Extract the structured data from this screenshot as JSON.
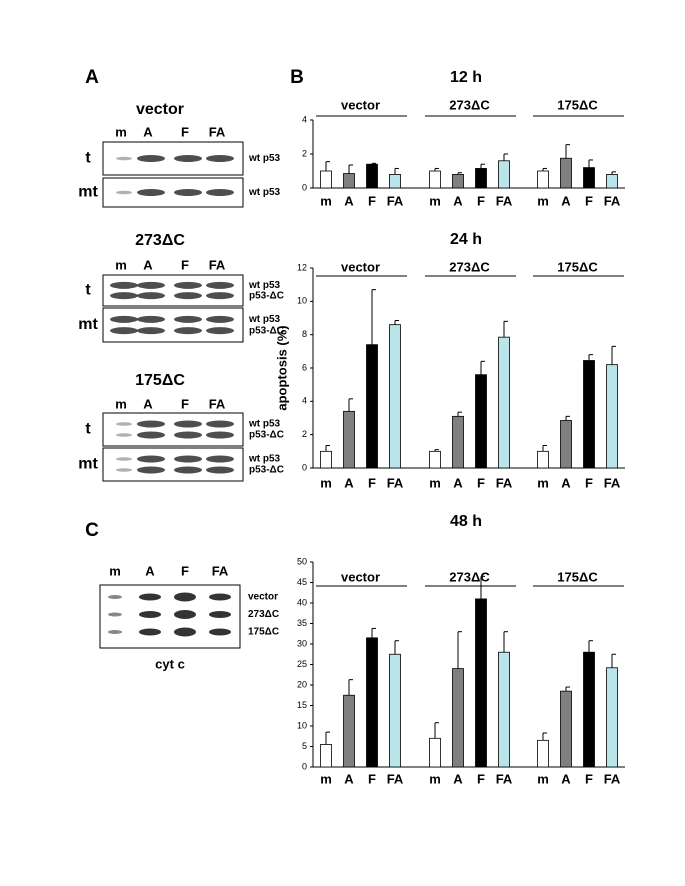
{
  "figure": {
    "panel_labels": [
      "A",
      "B",
      "C"
    ]
  },
  "blots": [
    {
      "title": "vector",
      "lanes": [
        "m",
        "A",
        "F",
        "FA"
      ],
      "rows": [
        {
          "label": "t",
          "bands": [
            "wt p53"
          ]
        },
        {
          "label": "mt",
          "bands": [
            "wt p53"
          ]
        }
      ]
    },
    {
      "title": "273ΔC",
      "lanes": [
        "m",
        "A",
        "F",
        "FA"
      ],
      "rows": [
        {
          "label": "t",
          "bands": [
            "wt p53",
            "p53-ΔC"
          ]
        },
        {
          "label": "mt",
          "bands": [
            "wt p53",
            "p53-ΔC"
          ]
        }
      ]
    },
    {
      "title": "175ΔC",
      "lanes": [
        "m",
        "A",
        "F",
        "FA"
      ],
      "rows": [
        {
          "label": "t",
          "bands": [
            "wt p53",
            "p53-ΔC"
          ]
        },
        {
          "label": "mt",
          "bands": [
            "wt p53",
            "p53-ΔC"
          ]
        }
      ]
    }
  ],
  "cyt_c": {
    "lanes": [
      "m",
      "A",
      "F",
      "FA"
    ],
    "bands": [
      "vector",
      "273ΔC",
      "175ΔC"
    ],
    "caption": "cyt c"
  },
  "chart_data": [
    {
      "type": "bar",
      "title": "12 h",
      "categories": [
        "m",
        "A",
        "F",
        "FA"
      ],
      "colors": [
        "#ffffff",
        "#808080",
        "#000000",
        "#b8e4ea"
      ],
      "groups": [
        {
          "name": "vector",
          "values": [
            1.0,
            0.85,
            1.4,
            0.8
          ],
          "errors": [
            0.55,
            0.5,
            0.05,
            0.35
          ]
        },
        {
          "name": "273ΔC",
          "values": [
            1.0,
            0.8,
            1.15,
            1.6
          ],
          "errors": [
            0.15,
            0.1,
            0.25,
            0.4
          ]
        },
        {
          "name": "175ΔC",
          "values": [
            1.0,
            1.75,
            1.2,
            0.8
          ],
          "errors": [
            0.15,
            0.8,
            0.45,
            0.15
          ]
        }
      ],
      "ylim": [
        0,
        4
      ],
      "yticks": [
        0,
        2,
        4
      ]
    },
    {
      "type": "bar",
      "title": "24 h",
      "y_label": "apoptosis (%)",
      "categories": [
        "m",
        "A",
        "F",
        "FA"
      ],
      "colors": [
        "#ffffff",
        "#808080",
        "#000000",
        "#b8e4ea"
      ],
      "groups": [
        {
          "name": "vector",
          "values": [
            1.0,
            3.4,
            7.4,
            8.6
          ],
          "errors": [
            0.35,
            0.75,
            3.3,
            0.25
          ]
        },
        {
          "name": "273ΔC",
          "values": [
            1.0,
            3.1,
            5.6,
            7.85
          ],
          "errors": [
            0.1,
            0.25,
            0.8,
            0.95
          ]
        },
        {
          "name": "175ΔC",
          "values": [
            1.0,
            2.85,
            6.45,
            6.2
          ],
          "errors": [
            0.35,
            0.25,
            0.35,
            1.1
          ]
        }
      ],
      "ylim": [
        0,
        12
      ],
      "yticks": [
        0,
        2,
        4,
        6,
        8,
        10,
        12
      ]
    },
    {
      "type": "bar",
      "title": "48 h",
      "categories": [
        "m",
        "A",
        "F",
        "FA"
      ],
      "colors": [
        "#ffffff",
        "#808080",
        "#000000",
        "#b8e4ea"
      ],
      "groups": [
        {
          "name": "vector",
          "values": [
            5.5,
            17.5,
            31.5,
            27.5
          ],
          "errors": [
            3,
            3.8,
            2.3,
            3.3
          ]
        },
        {
          "name": "273ΔC",
          "values": [
            7,
            24,
            41,
            28
          ],
          "errors": [
            3.8,
            9,
            5.5,
            5
          ]
        },
        {
          "name": "175ΔC",
          "values": [
            6.5,
            18.5,
            28,
            24.2
          ],
          "errors": [
            1.8,
            1,
            2.8,
            3.3
          ]
        }
      ],
      "ylim": [
        0,
        50
      ],
      "yticks": [
        0,
        5,
        10,
        15,
        20,
        25,
        30,
        35,
        40,
        45,
        50
      ]
    }
  ]
}
